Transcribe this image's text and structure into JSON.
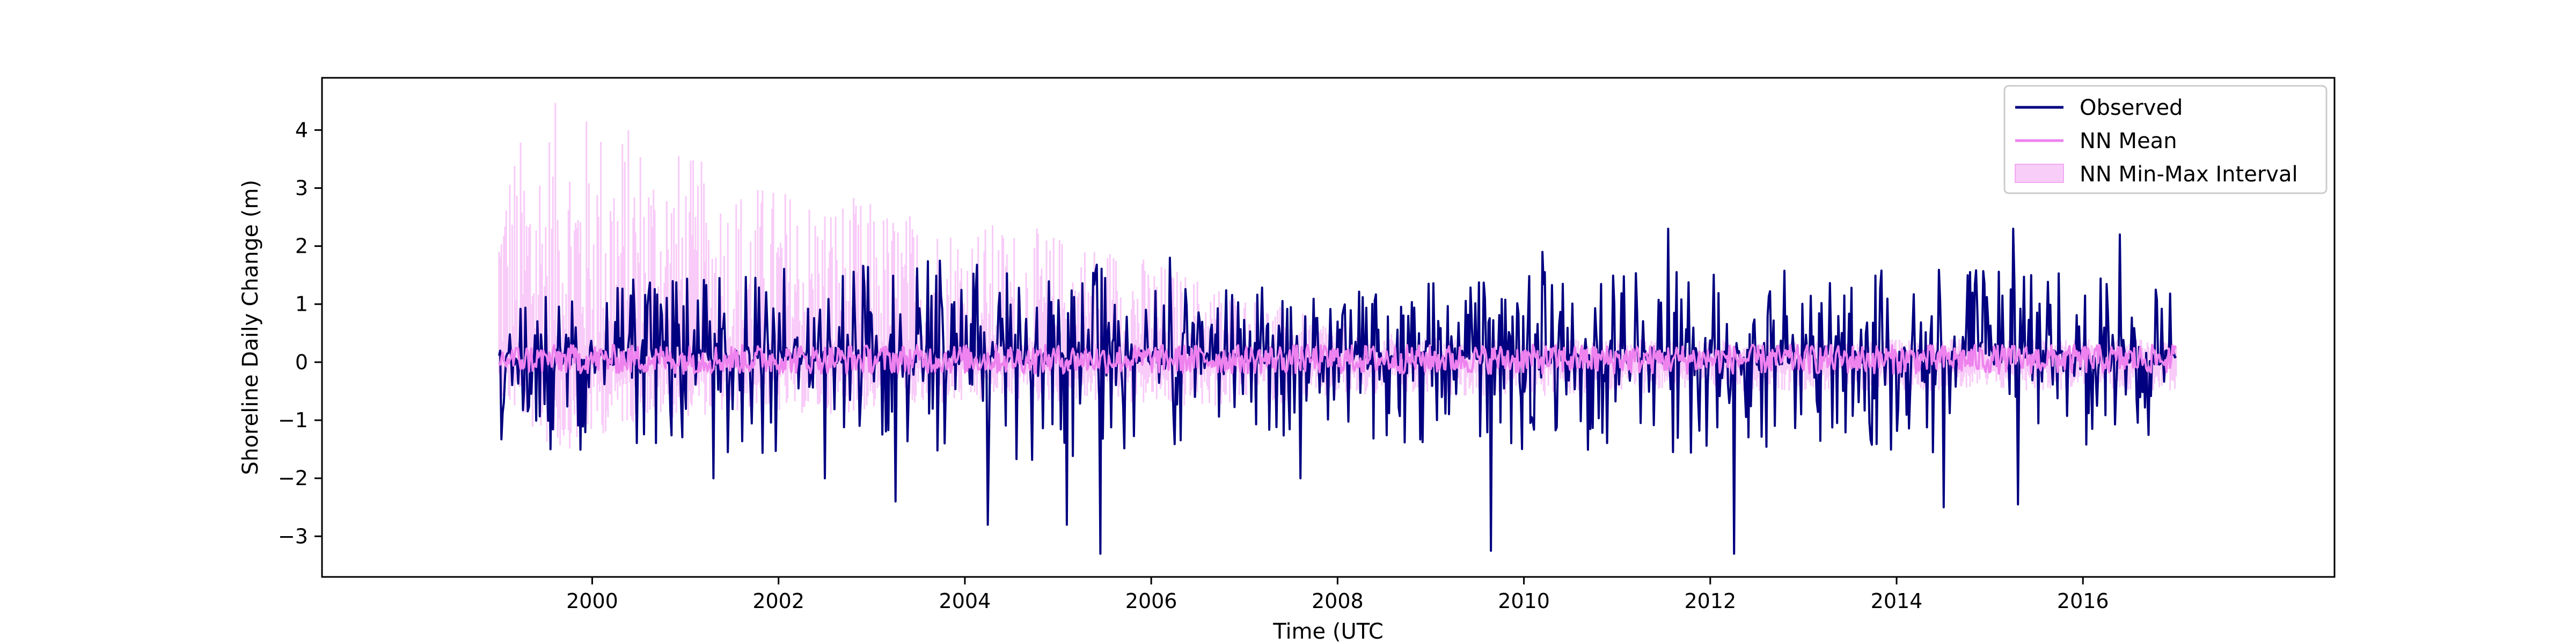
{
  "chart_data": {
    "type": "line",
    "title": "",
    "xlabel": "Time (UTC",
    "ylabel": "Shoreline Daily Change (m)",
    "xlim": [
      1997.1,
      2018.7
    ],
    "ylim": [
      -3.7,
      4.9
    ],
    "x_ticks": [
      2000,
      2002,
      2004,
      2006,
      2008,
      2010,
      2012,
      2014,
      2016
    ],
    "x_tick_labels": [
      "2000",
      "2002",
      "2004",
      "2006",
      "2008",
      "2010",
      "2012",
      "2014",
      "2016"
    ],
    "y_ticks": [
      -3,
      -2,
      -1,
      0,
      1,
      2,
      3,
      4
    ],
    "y_tick_labels": [
      "−3",
      "−2",
      "−1",
      "0",
      "1",
      "2",
      "3",
      "4"
    ],
    "x_range": [
      1999.0,
      2017.0
    ],
    "grid": false,
    "legend_position": "top-right",
    "colors": {
      "observed": "#000080",
      "nn_mean": "#ee82ee",
      "nn_interval": "#ee82ee"
    },
    "series": [
      {
        "name": "Observed",
        "kind": "line",
        "notable_points": [
          {
            "x": 1999.55,
            "y": -1.5
          },
          {
            "x": 2001.3,
            "y": -2.0
          },
          {
            "x": 2002.5,
            "y": -2.0
          },
          {
            "x": 2003.25,
            "y": -2.4
          },
          {
            "x": 2004.25,
            "y": -2.8
          },
          {
            "x": 2005.1,
            "y": -2.8
          },
          {
            "x": 2005.45,
            "y": -3.3
          },
          {
            "x": 2006.2,
            "y": 1.8
          },
          {
            "x": 2007.6,
            "y": -2.0
          },
          {
            "x": 2009.65,
            "y": -3.25
          },
          {
            "x": 2010.2,
            "y": 1.9
          },
          {
            "x": 2011.55,
            "y": 2.3
          },
          {
            "x": 2012.25,
            "y": -3.3
          },
          {
            "x": 2014.5,
            "y": -2.5
          },
          {
            "x": 2015.25,
            "y": 2.3
          },
          {
            "x": 2015.3,
            "y": -2.45
          },
          {
            "x": 2016.4,
            "y": 2.2
          }
        ],
        "envelope": [
          {
            "x": 1999.0,
            "max": 1.2,
            "min": -1.4
          },
          {
            "x": 2001.0,
            "max": 1.4,
            "min": -1.5
          },
          {
            "x": 2003.0,
            "max": 1.7,
            "min": -1.6
          },
          {
            "x": 2005.0,
            "max": 1.7,
            "min": -1.6
          },
          {
            "x": 2007.0,
            "max": 1.2,
            "min": -1.2
          },
          {
            "x": 2009.0,
            "max": 1.3,
            "min": -1.3
          },
          {
            "x": 2011.0,
            "max": 1.6,
            "min": -1.5
          },
          {
            "x": 2013.0,
            "max": 1.5,
            "min": -1.4
          },
          {
            "x": 2015.0,
            "max": 1.6,
            "min": -1.5
          },
          {
            "x": 2017.0,
            "max": 1.3,
            "min": -1.2
          }
        ]
      },
      {
        "name": "NN Mean",
        "kind": "line",
        "typical_range": [
          -0.2,
          0.3
        ]
      },
      {
        "name": "NN Min-Max Interval",
        "kind": "band",
        "envelope": [
          {
            "x": 1999.0,
            "max": 3.6,
            "min": -0.6
          },
          {
            "x": 1999.6,
            "max": 4.5,
            "min": -1.6
          },
          {
            "x": 2000.5,
            "max": 4.1,
            "min": -1.0
          },
          {
            "x": 2001.5,
            "max": 3.2,
            "min": -0.9
          },
          {
            "x": 2002.5,
            "max": 3.0,
            "min": -0.9
          },
          {
            "x": 2003.5,
            "max": 2.6,
            "min": -0.8
          },
          {
            "x": 2004.5,
            "max": 2.4,
            "min": -0.7
          },
          {
            "x": 2005.5,
            "max": 2.1,
            "min": -0.7
          },
          {
            "x": 2006.5,
            "max": 1.5,
            "min": -0.8
          },
          {
            "x": 2007.5,
            "max": 0.9,
            "min": -0.7
          },
          {
            "x": 2008.5,
            "max": 0.5,
            "min": -0.6
          },
          {
            "x": 2010.0,
            "max": 0.4,
            "min": -0.6
          },
          {
            "x": 2012.0,
            "max": 0.4,
            "min": -0.5
          },
          {
            "x": 2014.0,
            "max": 0.4,
            "min": -0.5
          },
          {
            "x": 2017.0,
            "max": 0.4,
            "min": -0.5
          }
        ]
      }
    ]
  }
}
